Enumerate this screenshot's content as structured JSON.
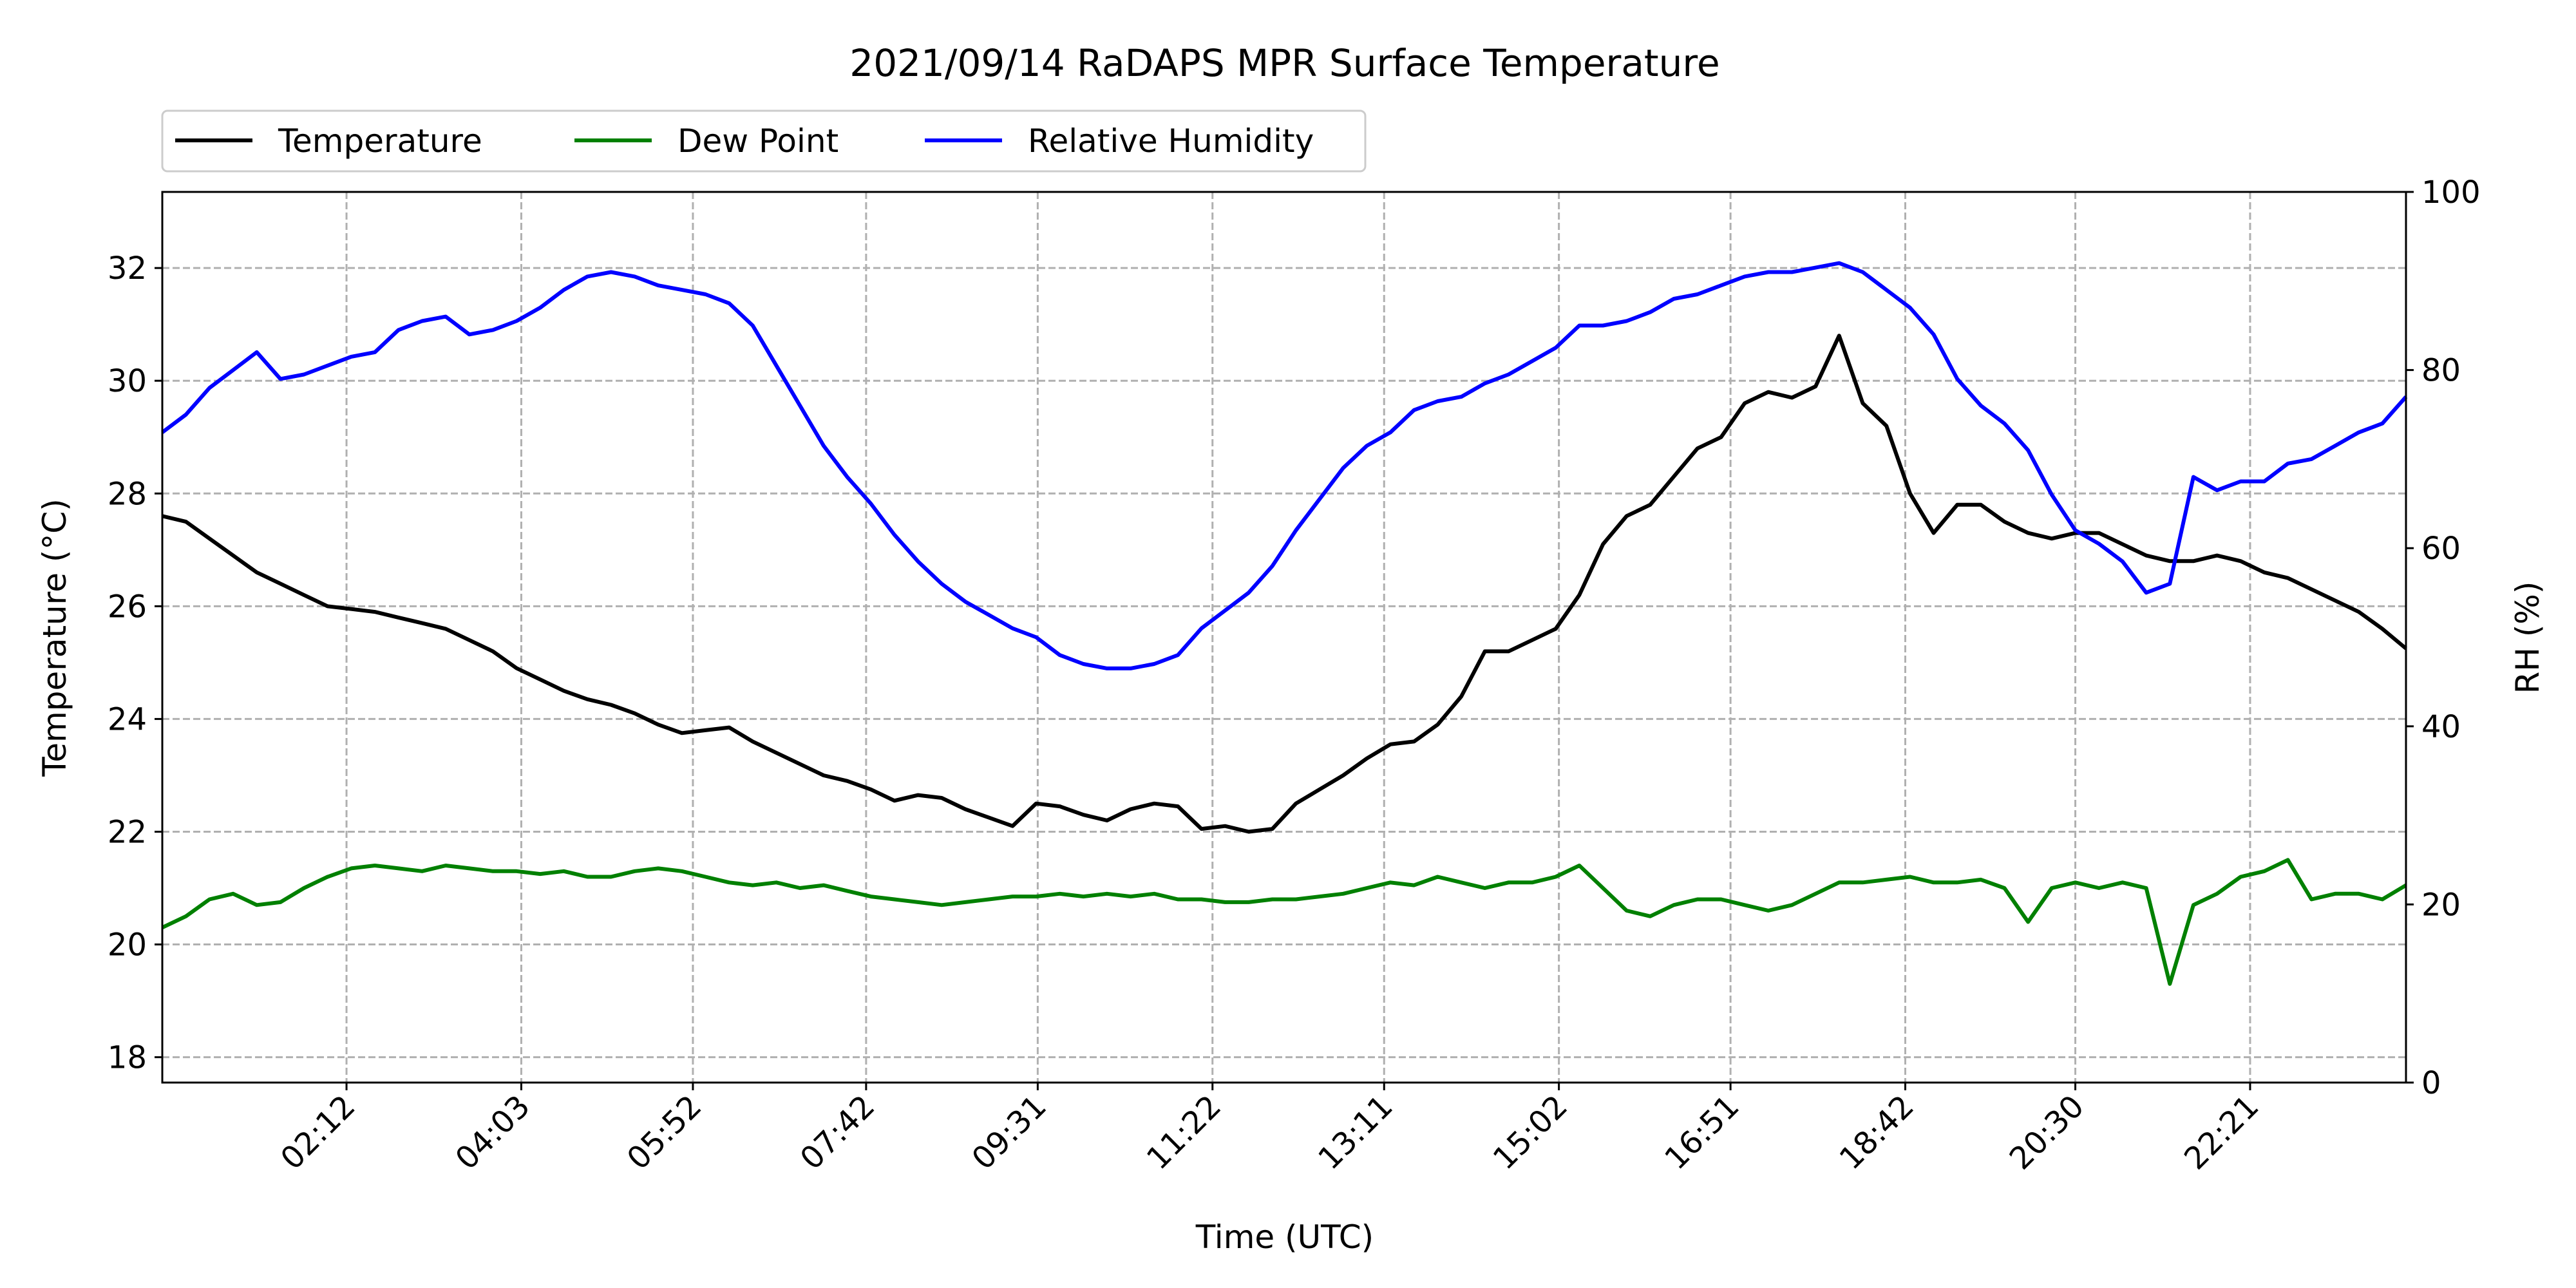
{
  "chart_data": {
    "type": "line",
    "title": "2021/09/14 RaDAPS MPR Surface Temperature",
    "xlabel": "Time (UTC)",
    "ylabel": "Temperature ($^\\circ$C)",
    "ylabel_display": "Temperature (°C)",
    "y2label": "RH (%)",
    "xlim_hours": [
      0.25,
      24.0
    ],
    "ylim": [
      17.55,
      33.35
    ],
    "y2lim": [
      0,
      100
    ],
    "x_tick_labels": [
      "02:12",
      "04:03",
      "05:52",
      "07:42",
      "09:31",
      "11:22",
      "13:11",
      "15:02",
      "16:51",
      "18:42",
      "20:30",
      "22:21"
    ],
    "x_tick_hours": [
      2.2,
      4.05,
      5.8667,
      7.7,
      9.5167,
      11.3667,
      13.1833,
      15.0333,
      16.85,
      18.7,
      20.5,
      22.35
    ],
    "y_ticks": [
      18,
      20,
      22,
      24,
      26,
      28,
      30,
      32
    ],
    "y2_ticks": [
      0,
      20,
      40,
      60,
      80,
      100
    ],
    "grid": true,
    "legend_placement": "top-left, above plot",
    "x": [
      0.25,
      0.5,
      0.75,
      1.0,
      1.25,
      1.5,
      1.75,
      2.0,
      2.25,
      2.5,
      2.75,
      3.0,
      3.25,
      3.5,
      3.75,
      4.0,
      4.25,
      4.5,
      4.75,
      5.0,
      5.25,
      5.5,
      5.75,
      6.0,
      6.25,
      6.5,
      6.75,
      7.0,
      7.25,
      7.5,
      7.75,
      8.0,
      8.25,
      8.5,
      8.75,
      9.0,
      9.25,
      9.5,
      9.75,
      10.0,
      10.25,
      10.5,
      10.75,
      11.0,
      11.25,
      11.5,
      11.75,
      12.0,
      12.25,
      12.5,
      12.75,
      13.0,
      13.25,
      13.5,
      13.75,
      14.0,
      14.25,
      14.5,
      14.75,
      15.0,
      15.25,
      15.5,
      15.75,
      16.0,
      16.25,
      16.5,
      16.75,
      17.0,
      17.25,
      17.5,
      17.75,
      18.0,
      18.25,
      18.5,
      18.75,
      19.0,
      19.25,
      19.5,
      19.75,
      20.0,
      20.25,
      20.5,
      20.75,
      21.0,
      21.25,
      21.5,
      21.75,
      22.0,
      22.25,
      22.5,
      22.75,
      23.0,
      23.25,
      23.5,
      23.75,
      24.0
    ],
    "series": [
      {
        "name": "Temperature",
        "color": "#000000",
        "axis": "left",
        "values": [
          27.6,
          27.5,
          27.2,
          26.9,
          26.6,
          26.4,
          26.2,
          26.0,
          25.95,
          25.9,
          25.8,
          25.7,
          25.6,
          25.4,
          25.2,
          24.9,
          24.7,
          24.5,
          24.35,
          24.25,
          24.1,
          23.9,
          23.75,
          23.8,
          23.85,
          23.6,
          23.4,
          23.2,
          23.0,
          22.9,
          22.75,
          22.55,
          22.65,
          22.6,
          22.4,
          22.25,
          22.1,
          22.5,
          22.45,
          22.3,
          22.2,
          22.4,
          22.5,
          22.45,
          22.05,
          22.1,
          22.0,
          22.05,
          22.5,
          22.75,
          23.0,
          23.3,
          23.55,
          23.6,
          23.9,
          24.4,
          25.2,
          25.2,
          25.4,
          25.6,
          26.2,
          27.1,
          27.6,
          27.8,
          28.3,
          28.8,
          29.0,
          29.6,
          29.8,
          29.7,
          29.9,
          30.8,
          29.6,
          29.2,
          28.0,
          27.3,
          27.8,
          27.8,
          27.5,
          27.3,
          27.2,
          27.3,
          27.3,
          27.1,
          26.9,
          26.8,
          26.8,
          26.9,
          26.8,
          26.6,
          26.5,
          26.3,
          26.1,
          25.9,
          25.6,
          25.25
        ]
      },
      {
        "name": "Dew Point",
        "color": "#008000",
        "axis": "left",
        "values": [
          20.3,
          20.5,
          20.8,
          20.9,
          20.7,
          20.75,
          21.0,
          21.2,
          21.35,
          21.4,
          21.35,
          21.3,
          21.4,
          21.35,
          21.3,
          21.3,
          21.25,
          21.3,
          21.2,
          21.2,
          21.3,
          21.35,
          21.3,
          21.2,
          21.1,
          21.05,
          21.1,
          21.0,
          21.05,
          20.95,
          20.85,
          20.8,
          20.75,
          20.7,
          20.75,
          20.8,
          20.85,
          20.85,
          20.9,
          20.85,
          20.9,
          20.85,
          20.9,
          20.8,
          20.8,
          20.75,
          20.75,
          20.8,
          20.8,
          20.85,
          20.9,
          21.0,
          21.1,
          21.05,
          21.2,
          21.1,
          21.0,
          21.1,
          21.1,
          21.2,
          21.4,
          21.0,
          20.6,
          20.5,
          20.7,
          20.8,
          20.8,
          20.7,
          20.6,
          20.7,
          20.9,
          21.1,
          21.1,
          21.15,
          21.2,
          21.1,
          21.1,
          21.15,
          21.0,
          20.4,
          21.0,
          21.1,
          21.0,
          21.1,
          21.0,
          19.3,
          20.7,
          20.9,
          21.2,
          21.3,
          21.5,
          20.8,
          20.9,
          20.9,
          20.8,
          21.05
        ]
      },
      {
        "name": "Relative Humidity",
        "color": "#0000ff",
        "axis": "right",
        "values": [
          73,
          75,
          78,
          80,
          82,
          79,
          79.5,
          80.5,
          81.5,
          82,
          84.5,
          85.5,
          86,
          84,
          84.5,
          85.5,
          87,
          89,
          90.5,
          91,
          90.5,
          89.5,
          89,
          88.5,
          87.5,
          85,
          80.5,
          76,
          71.5,
          68,
          65,
          61.5,
          58.5,
          56,
          54,
          52.5,
          51,
          50,
          48,
          47,
          46.5,
          46.5,
          47,
          48,
          51,
          53,
          55,
          58,
          62,
          65.5,
          69,
          71.5,
          73,
          75.5,
          76.5,
          77,
          78.5,
          79.5,
          81,
          82.5,
          85,
          85,
          85.5,
          86.5,
          88,
          88.5,
          89.5,
          90.5,
          91,
          91,
          91.5,
          92,
          91,
          89,
          87,
          84,
          79,
          76,
          74,
          71,
          66,
          62,
          60.5,
          58.5,
          55,
          56,
          68,
          66.5,
          67.5,
          67.5,
          69.5,
          70,
          71.5,
          73,
          74,
          77
        ]
      }
    ]
  }
}
